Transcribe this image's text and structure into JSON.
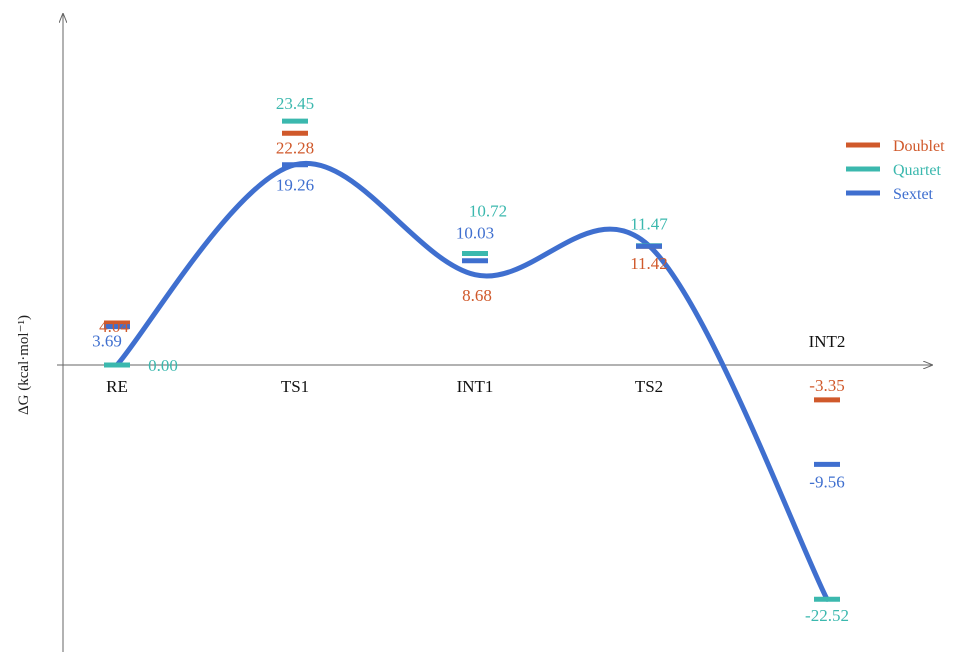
{
  "chart_data": {
    "type": "energy-profile",
    "ylabel": "ΔG (kcal·mol⁻¹)",
    "stages": [
      "RE",
      "TS1",
      "INT1",
      "TS2",
      "INT2"
    ],
    "legend_position": "top-right",
    "series": [
      {
        "name": "Doublet",
        "color": "#d0592b",
        "values": [
          4.04,
          22.28,
          null,
          11.42,
          -3.35
        ],
        "labels": [
          "4.04",
          "22.28",
          "",
          "11.42",
          "-3.35"
        ]
      },
      {
        "name": "Quartet",
        "color": "#3bb8ae",
        "values": [
          0.0,
          23.45,
          10.72,
          11.47,
          -22.52
        ],
        "labels": [
          "0.00",
          "23.45",
          "10.72",
          "11.47",
          "-22.52"
        ]
      },
      {
        "name": "Sextet",
        "color": "#3f6fcf",
        "values": [
          3.69,
          19.26,
          10.03,
          11.42,
          -9.56
        ],
        "labels": [
          "3.69",
          "19.26",
          "10.03",
          "",
          "-9.56"
        ]
      }
    ],
    "extra_labels": [
      {
        "stage": "INT1",
        "series": "Doublet",
        "text": "8.68"
      }
    ],
    "path": {
      "color": "#3f6fcf",
      "points": [
        {
          "stage": "RE",
          "value": 0.0
        },
        {
          "stage": "TS1",
          "value": 19.26
        },
        {
          "stage": "INT1",
          "value": 8.68
        },
        {
          "stage": "TS2",
          "value": 11.47
        },
        {
          "stage": "INT2",
          "value": -22.52
        }
      ]
    }
  }
}
